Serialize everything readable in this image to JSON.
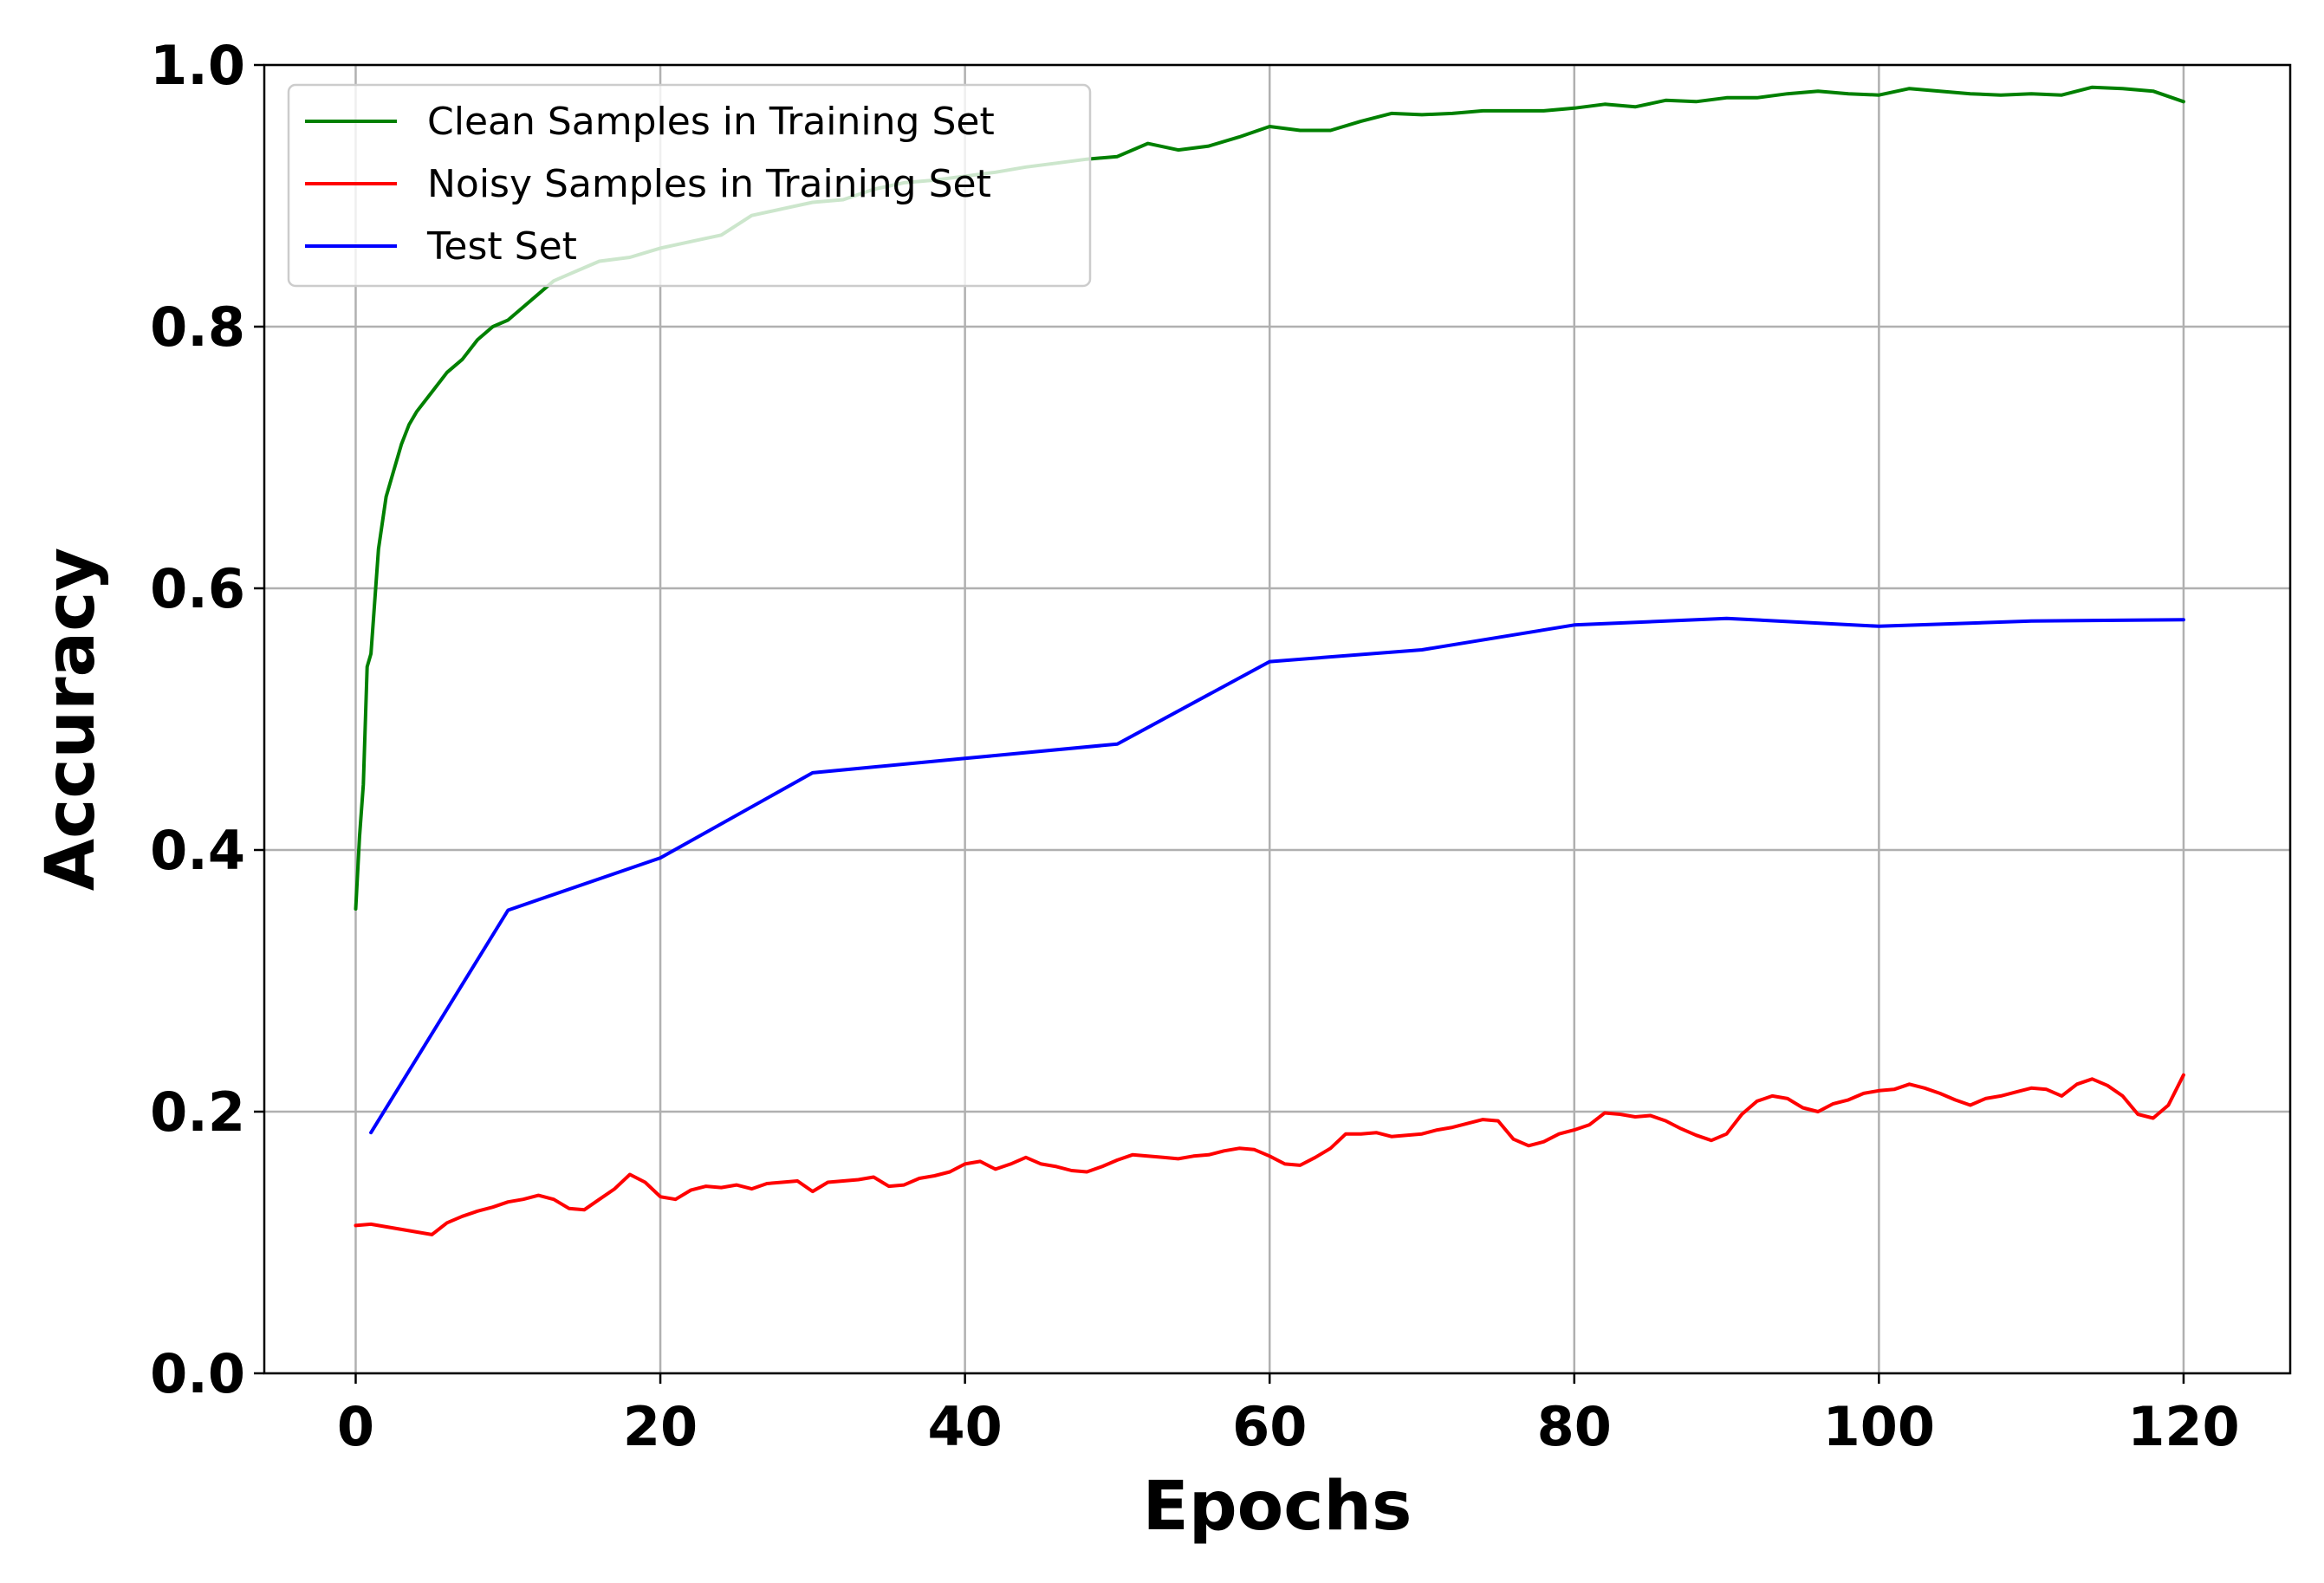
{
  "chart_data": {
    "type": "line",
    "title": "",
    "xlabel": "Epochs",
    "ylabel": "Accuracy",
    "xlim": [
      -6,
      127
    ],
    "ylim": [
      0.0,
      1.0
    ],
    "xticks": [
      0,
      20,
      40,
      60,
      80,
      100,
      120
    ],
    "yticks": [
      0.0,
      0.2,
      0.4,
      0.6,
      0.8,
      1.0
    ],
    "xtick_labels": [
      "0",
      "20",
      "40",
      "60",
      "80",
      "100",
      "120"
    ],
    "ytick_labels": [
      "0.0",
      "0.2",
      "0.4",
      "0.6",
      "0.8",
      "1.0"
    ],
    "grid": true,
    "legend_position": "top-left",
    "series": [
      {
        "name": "Clean Samples in Training Set",
        "color": "#008000",
        "x": [
          0,
          0.25,
          0.5,
          0.75,
          1,
          1.5,
          2,
          2.5,
          3,
          3.5,
          4,
          5,
          6,
          7,
          8,
          9,
          10,
          11,
          12,
          13,
          14,
          15,
          16,
          18,
          20,
          22,
          24,
          26,
          28,
          30,
          32,
          34,
          36,
          38,
          40,
          42,
          44,
          46,
          48,
          50,
          52,
          54,
          56,
          58,
          60,
          62,
          64,
          66,
          68,
          70,
          72,
          74,
          76,
          78,
          80,
          82,
          84,
          86,
          88,
          90,
          92,
          94,
          96,
          98,
          100,
          102,
          104,
          106,
          108,
          110,
          112,
          114,
          116,
          118,
          120
        ],
        "y": [
          0.355,
          0.41,
          0.45,
          0.54,
          0.55,
          0.63,
          0.67,
          0.69,
          0.71,
          0.725,
          0.735,
          0.75,
          0.765,
          0.775,
          0.79,
          0.8,
          0.805,
          0.815,
          0.825,
          0.835,
          0.84,
          0.845,
          0.85,
          0.853,
          0.86,
          0.865,
          0.87,
          0.885,
          0.89,
          0.895,
          0.897,
          0.905,
          0.91,
          0.912,
          0.915,
          0.918,
          0.922,
          0.925,
          0.928,
          0.93,
          0.94,
          0.935,
          0.938,
          0.945,
          0.953,
          0.95,
          0.95,
          0.957,
          0.963,
          0.962,
          0.963,
          0.965,
          0.965,
          0.965,
          0.967,
          0.97,
          0.968,
          0.973,
          0.972,
          0.975,
          0.975,
          0.978,
          0.98,
          0.978,
          0.977,
          0.982,
          0.98,
          0.978,
          0.977,
          0.978,
          0.977,
          0.983,
          0.982,
          0.98,
          0.972
        ]
      },
      {
        "name": "Noisy Samples in Training Set",
        "color": "#ff0000",
        "x": [
          0,
          1,
          2,
          3,
          4,
          5,
          6,
          7,
          8,
          9,
          10,
          11,
          12,
          13,
          14,
          15,
          16,
          17,
          18,
          19,
          20,
          21,
          22,
          23,
          24,
          25,
          26,
          27,
          28,
          29,
          30,
          31,
          32,
          33,
          34,
          35,
          36,
          37,
          38,
          39,
          40,
          41,
          42,
          43,
          44,
          45,
          46,
          47,
          48,
          49,
          50,
          51,
          52,
          53,
          54,
          55,
          56,
          57,
          58,
          59,
          60,
          61,
          62,
          63,
          64,
          65,
          66,
          67,
          68,
          69,
          70,
          71,
          72,
          73,
          74,
          75,
          76,
          77,
          78,
          79,
          80,
          81,
          82,
          83,
          84,
          85,
          86,
          87,
          88,
          89,
          90,
          91,
          92,
          93,
          94,
          95,
          96,
          97,
          98,
          99,
          100,
          101,
          102,
          103,
          104,
          105,
          106,
          107,
          108,
          109,
          110,
          111,
          112,
          113,
          114,
          115,
          116,
          117,
          118,
          119,
          120
        ],
        "y": [
          0.113,
          0.114,
          0.112,
          0.11,
          0.108,
          0.106,
          0.115,
          0.12,
          0.124,
          0.127,
          0.131,
          0.133,
          0.136,
          0.133,
          0.126,
          0.125,
          0.133,
          0.141,
          0.152,
          0.146,
          0.135,
          0.133,
          0.14,
          0.143,
          0.142,
          0.144,
          0.141,
          0.145,
          0.146,
          0.147,
          0.139,
          0.146,
          0.147,
          0.148,
          0.15,
          0.143,
          0.144,
          0.149,
          0.151,
          0.154,
          0.16,
          0.162,
          0.156,
          0.16,
          0.165,
          0.16,
          0.158,
          0.155,
          0.154,
          0.158,
          0.163,
          0.167,
          0.166,
          0.165,
          0.164,
          0.166,
          0.167,
          0.17,
          0.172,
          0.171,
          0.166,
          0.16,
          0.159,
          0.165,
          0.172,
          0.183,
          0.183,
          0.184,
          0.181,
          0.182,
          0.183,
          0.186,
          0.188,
          0.191,
          0.194,
          0.193,
          0.179,
          0.174,
          0.177,
          0.183,
          0.186,
          0.19,
          0.199,
          0.198,
          0.196,
          0.197,
          0.193,
          0.187,
          0.182,
          0.178,
          0.183,
          0.198,
          0.208,
          0.212,
          0.21,
          0.203,
          0.2,
          0.206,
          0.209,
          0.214,
          0.216,
          0.217,
          0.221,
          0.218,
          0.214,
          0.209,
          0.205,
          0.21,
          0.212,
          0.215,
          0.218,
          0.217,
          0.212,
          0.221,
          0.225,
          0.22,
          0.212,
          0.198,
          0.195,
          0.205,
          0.228
        ]
      },
      {
        "name": "Test Set",
        "color": "#0000ff",
        "x": [
          1,
          10,
          20,
          30,
          40,
          50,
          60,
          70,
          80,
          90,
          100,
          110,
          120
        ],
        "y": [
          0.184,
          0.354,
          0.394,
          0.459,
          0.47,
          0.481,
          0.544,
          0.553,
          0.572,
          0.577,
          0.571,
          0.575,
          0.576
        ]
      }
    ]
  }
}
